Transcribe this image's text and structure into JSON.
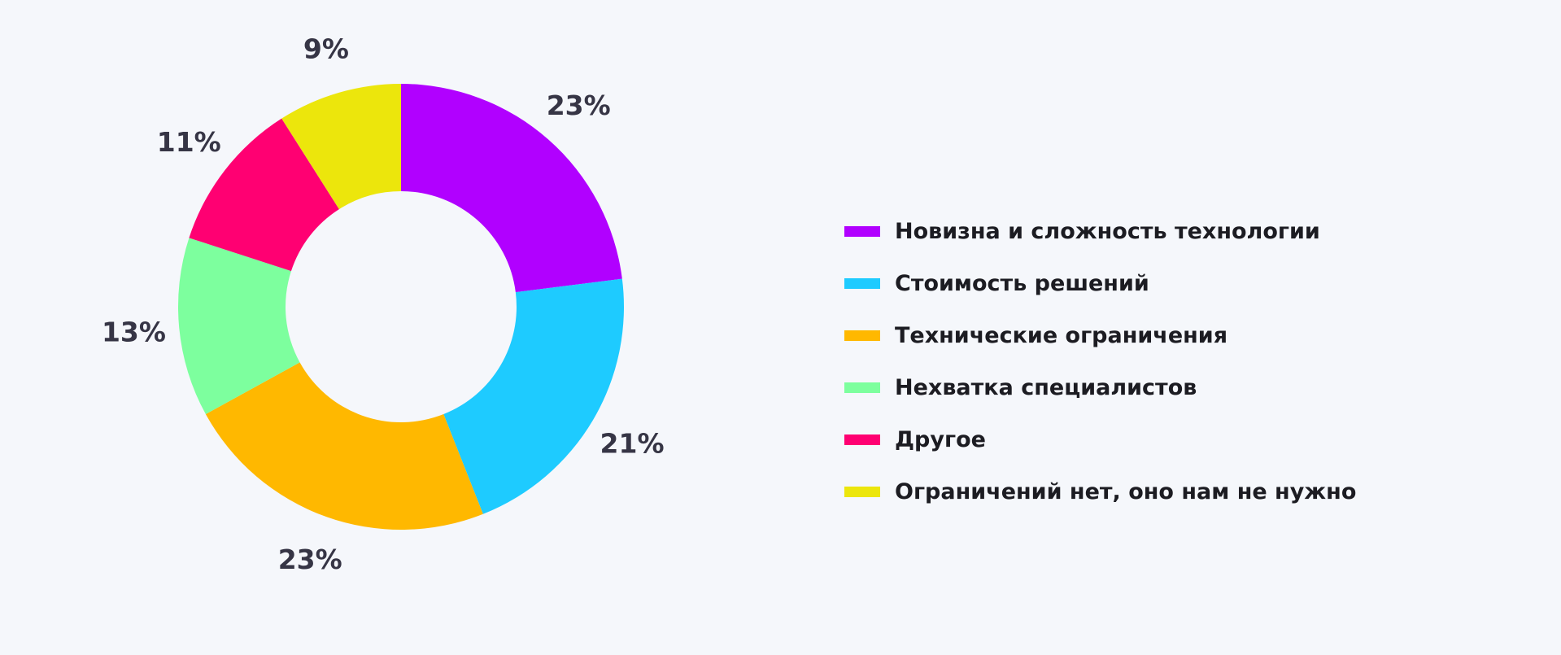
{
  "chart_data": {
    "type": "pie",
    "variant": "donut",
    "title": "",
    "legend_position": "right",
    "slices": [
      {
        "label": "Новизна и сложность технологии",
        "value": 23,
        "display": "23%",
        "color": "#b100ff"
      },
      {
        "label": "Стоимость решений",
        "value": 21,
        "display": "21%",
        "color": "#1ecbff"
      },
      {
        "label": "Технические ограничения",
        "value": 23,
        "display": "23%",
        "color": "#ffb800"
      },
      {
        "label": "Нехватка специалистов",
        "value": 13,
        "display": "13%",
        "color": "#7dff9e"
      },
      {
        "label": "Другое",
        "value": 11,
        "display": "11%",
        "color": "#ff0072"
      },
      {
        "label": "Ограничений нет, оно нам не нужно",
        "value": 9,
        "display": "9%",
        "color": "#ece60c"
      }
    ]
  }
}
